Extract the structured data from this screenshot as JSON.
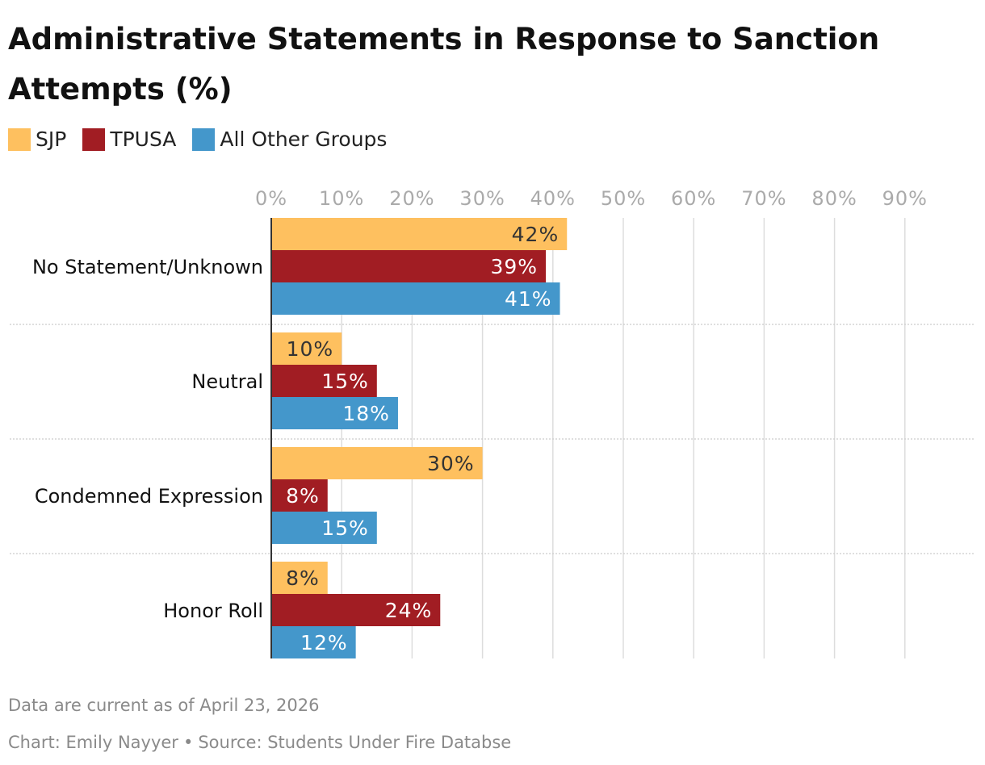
{
  "chart_data": {
    "type": "bar",
    "orientation": "horizontal",
    "title": "Administrative Statements in Response to Sanction Attempts (%)",
    "categories": [
      "No Statement/Unknown",
      "Neutral",
      "Condemned Expression",
      "Honor Roll"
    ],
    "series": [
      {
        "name": "SJP",
        "color": "#fec05f",
        "label_color": "#333333",
        "values": [
          42,
          10,
          30,
          8
        ]
      },
      {
        "name": "TPUSA",
        "color": "#a11d23",
        "label_color": "#ffffff",
        "values": [
          39,
          15,
          8,
          24
        ]
      },
      {
        "name": "All Other Groups",
        "color": "#4497cb",
        "label_color": "#ffffff",
        "values": [
          41,
          18,
          15,
          12
        ]
      }
    ],
    "xlim": [
      0,
      100
    ],
    "x_ticks": [
      0,
      10,
      20,
      30,
      40,
      50,
      60,
      70,
      80,
      90
    ],
    "x_tick_labels": [
      "0%",
      "10%",
      "20%",
      "30%",
      "40%",
      "50%",
      "60%",
      "70%",
      "80%",
      "90%"
    ],
    "value_suffix": "%",
    "grid": true,
    "legend_position": "top-left"
  },
  "notes": {
    "data_note": "Data are current as of April 23, 2026",
    "credit": "Chart: Emily Nayyer",
    "separator": "•",
    "source": "Source: Students Under Fire Databse"
  }
}
